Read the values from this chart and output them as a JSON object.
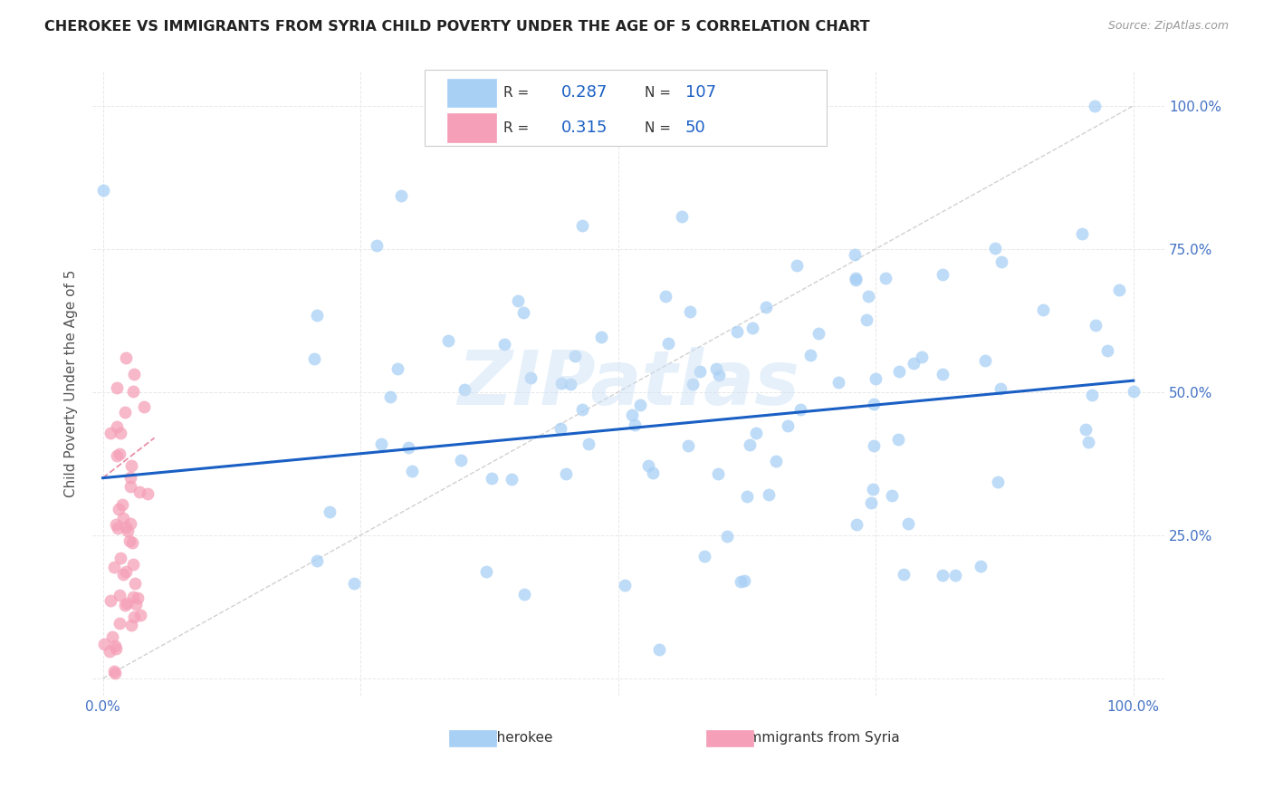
{
  "title": "CHEROKEE VS IMMIGRANTS FROM SYRIA CHILD POVERTY UNDER THE AGE OF 5 CORRELATION CHART",
  "source": "Source: ZipAtlas.com",
  "ylabel_label": "Child Poverty Under the Age of 5",
  "watermark": "ZIPatlas",
  "cherokee_R": "0.287",
  "cherokee_N": "107",
  "syria_R": "0.315",
  "syria_N": "50",
  "cherokee_color": "#a8d0f5",
  "syria_color": "#f5a0b8",
  "cherokee_edge": "#7ab8e8",
  "syria_edge": "#e87090",
  "trendline_color_cherokee": "#1a5fc4",
  "trendline_color_syria": "#e06080",
  "ref_line_color": "#cccccc",
  "grid_color": "#e8e8e8",
  "tick_color": "#4472c4",
  "title_color": "#222222",
  "source_color": "#999999",
  "watermark_color": "#c8dff5",
  "ylabel_color": "#555555",
  "legend_text_color": "#333333",
  "legend_value_color": "#1a5fc4",
  "background": "#ffffff",
  "cherokee_trend_x0": 0.0,
  "cherokee_trend_y0": 0.35,
  "cherokee_trend_x1": 1.0,
  "cherokee_trend_y1": 0.52,
  "syria_trend_x0": 0.0,
  "syria_trend_y0": 0.35,
  "syria_trend_x1": 0.05,
  "syria_trend_y1": 0.42,
  "xlim_min": -0.01,
  "xlim_max": 1.03,
  "ylim_min": -0.03,
  "ylim_max": 1.06,
  "x_ticks": [
    0.0,
    0.25,
    0.5,
    0.75,
    1.0
  ],
  "x_tick_labels": [
    "0.0%",
    "",
    "",
    "",
    "100.0%"
  ],
  "y_ticks": [
    0.0,
    0.25,
    0.5,
    0.75,
    1.0
  ],
  "y_tick_labels": [
    "",
    "25.0%",
    "50.0%",
    "75.0%",
    "100.0%"
  ],
  "cherokee_scatter_seed": 42,
  "syria_scatter_seed": 7
}
